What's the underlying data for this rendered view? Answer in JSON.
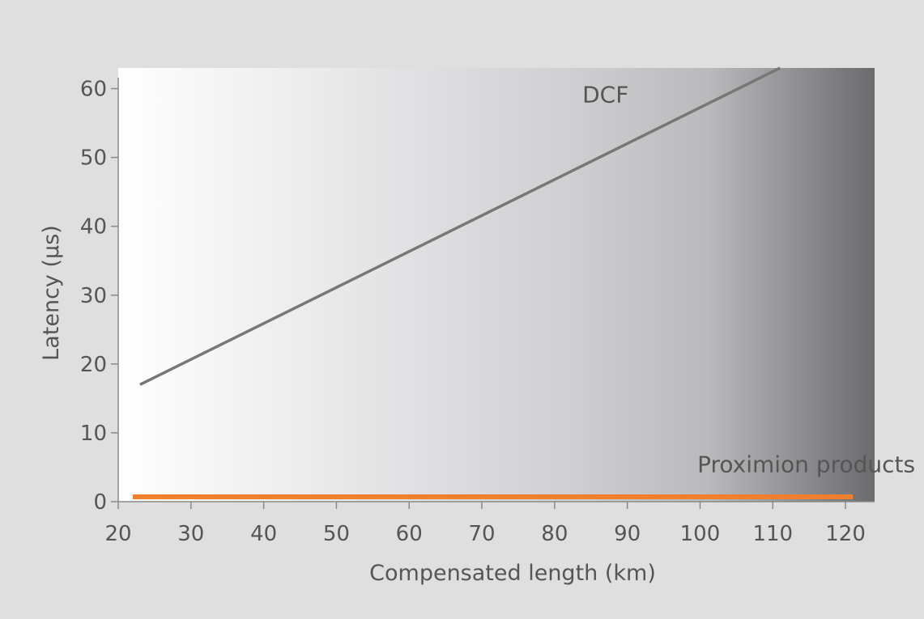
{
  "chart_data": {
    "type": "line",
    "xlabel": "Compensated length (km)",
    "ylabel": "Latency (µs)",
    "xlim": [
      20,
      124
    ],
    "ylim": [
      0,
      63
    ],
    "xticks": [
      20,
      30,
      40,
      50,
      60,
      70,
      80,
      90,
      100,
      110,
      120
    ],
    "yticks": [
      0,
      10,
      20,
      30,
      40,
      50,
      60
    ],
    "grid": false,
    "background": "horizontal gradient from white (left) to dark gray (right)",
    "series": [
      {
        "name": "DCF",
        "color": "#777777",
        "x": [
          23,
          111
        ],
        "y": [
          17,
          63
        ]
      },
      {
        "name": "Proximion products",
        "color": "#f07f2e",
        "x": [
          22,
          121
        ],
        "y": [
          0.7,
          0.7
        ]
      }
    ]
  }
}
